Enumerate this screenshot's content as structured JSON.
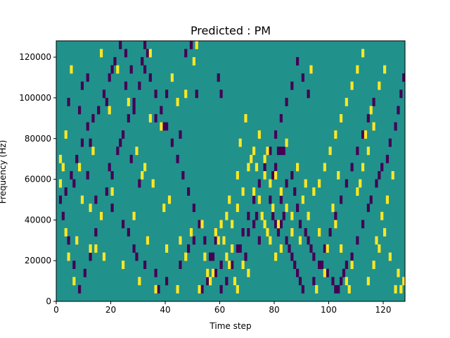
{
  "chart_data": {
    "type": "heatmap",
    "title": "Predicted : PM",
    "xlabel": "Time step",
    "ylabel": "Frequency (Hz)",
    "xlim": [
      0,
      128
    ],
    "ylim": [
      0,
      128000
    ],
    "x_ticks": [
      0,
      20,
      40,
      60,
      80,
      100,
      120
    ],
    "y_ticks": [
      0,
      20000,
      40000,
      60000,
      80000,
      100000,
      120000
    ],
    "grid": false,
    "colormap": {
      "low": "#440154",
      "mid": "#21918c",
      "high": "#fde725"
    },
    "background_value": "mid",
    "cell_height_hz": 4000,
    "high_cells": [
      [
        34,
        120000
      ],
      [
        51,
        124000
      ],
      [
        5,
        112000
      ],
      [
        22,
        112000
      ],
      [
        34,
        88000
      ],
      [
        42,
        108000
      ],
      [
        47,
        100000
      ],
      [
        13,
        72000
      ],
      [
        29,
        72000
      ],
      [
        2,
        64000
      ],
      [
        8,
        64000
      ],
      [
        20,
        52000
      ],
      [
        31,
        60000
      ],
      [
        9,
        48000
      ],
      [
        12,
        44000
      ],
      [
        16,
        40000
      ],
      [
        3,
        32000
      ],
      [
        7,
        28000
      ],
      [
        12,
        24000
      ],
      [
        14,
        24000
      ],
      [
        17,
        20000
      ],
      [
        24,
        16000
      ],
      [
        30,
        8000
      ],
      [
        36,
        4000
      ],
      [
        44,
        4000
      ],
      [
        52,
        4000
      ],
      [
        55,
        12000
      ],
      [
        57,
        12000
      ],
      [
        61,
        28000
      ],
      [
        62,
        20000
      ],
      [
        63,
        16000
      ],
      [
        64,
        24000
      ],
      [
        65,
        8000
      ],
      [
        66,
        4000
      ],
      [
        62,
        40000
      ],
      [
        63,
        48000
      ],
      [
        66,
        60000
      ],
      [
        67,
        76000
      ],
      [
        69,
        88000
      ],
      [
        71,
        68000
      ],
      [
        72,
        52000
      ],
      [
        73,
        64000
      ],
      [
        74,
        48000
      ],
      [
        75,
        40000
      ],
      [
        76,
        36000
      ],
      [
        77,
        32000
      ],
      [
        78,
        28000
      ],
      [
        77,
        72000
      ],
      [
        76,
        60000
      ],
      [
        78,
        56000
      ],
      [
        79,
        44000
      ],
      [
        81,
        36000
      ],
      [
        82,
        24000
      ],
      [
        84,
        76000
      ],
      [
        88,
        64000
      ],
      [
        91,
        56000
      ],
      [
        93,
        112000
      ],
      [
        96,
        32000
      ],
      [
        99,
        24000
      ],
      [
        101,
        44000
      ],
      [
        103,
        60000
      ],
      [
        106,
        8000
      ],
      [
        108,
        16000
      ],
      [
        110,
        52000
      ],
      [
        112,
        64000
      ],
      [
        113,
        80000
      ],
      [
        115,
        92000
      ],
      [
        117,
        28000
      ],
      [
        119,
        40000
      ],
      [
        121,
        48000
      ],
      [
        123,
        60000
      ],
      [
        125,
        12000
      ],
      [
        126,
        4000
      ],
      [
        127,
        8000
      ],
      [
        50,
        116000
      ],
      [
        44,
        96000
      ],
      [
        38,
        84000
      ],
      [
        26,
        96000
      ],
      [
        19,
        92000
      ],
      [
        3,
        80000
      ],
      [
        1,
        56000
      ],
      [
        4,
        20000
      ],
      [
        6,
        8000
      ],
      [
        28,
        40000
      ],
      [
        33,
        28000
      ],
      [
        40,
        24000
      ],
      [
        47,
        20000
      ],
      [
        54,
        20000
      ],
      [
        58,
        32000
      ],
      [
        60,
        36000
      ],
      [
        68,
        16000
      ],
      [
        70,
        12000
      ],
      [
        80,
        20000
      ],
      [
        86,
        32000
      ],
      [
        89,
        28000
      ],
      [
        95,
        4000
      ],
      [
        98,
        12000
      ],
      [
        102,
        36000
      ],
      [
        104,
        24000
      ],
      [
        107,
        4000
      ],
      [
        111,
        56000
      ],
      [
        114,
        72000
      ],
      [
        116,
        84000
      ],
      [
        118,
        104000
      ],
      [
        120,
        112000
      ],
      [
        122,
        20000
      ],
      [
        124,
        4000
      ],
      [
        16,
        120000
      ],
      [
        32,
        64000
      ],
      [
        35,
        56000
      ],
      [
        39,
        44000
      ],
      [
        41,
        48000
      ],
      [
        45,
        28000
      ],
      [
        49,
        32000
      ],
      [
        53,
        36000
      ],
      [
        56,
        8000
      ],
      [
        59,
        28000
      ],
      [
        64,
        36000
      ],
      [
        66,
        44000
      ],
      [
        68,
        52000
      ],
      [
        70,
        64000
      ],
      [
        72,
        72000
      ],
      [
        74,
        80000
      ],
      [
        76,
        68000
      ],
      [
        80,
        60000
      ],
      [
        82,
        52000
      ],
      [
        84,
        44000
      ],
      [
        86,
        40000
      ],
      [
        90,
        48000
      ],
      [
        92,
        40000
      ],
      [
        94,
        52000
      ],
      [
        96,
        56000
      ],
      [
        98,
        64000
      ],
      [
        100,
        72000
      ],
      [
        102,
        80000
      ],
      [
        104,
        88000
      ],
      [
        106,
        96000
      ],
      [
        108,
        104000
      ],
      [
        110,
        112000
      ],
      [
        112,
        120000
      ],
      [
        114,
        8000
      ],
      [
        116,
        16000
      ],
      [
        118,
        24000
      ],
      [
        120,
        32000
      ],
      [
        1,
        68000
      ]
    ],
    "low_cells": [
      [
        32,
        124000
      ],
      [
        33,
        120000
      ],
      [
        31,
        116000
      ],
      [
        47,
        120000
      ],
      [
        49,
        124000
      ],
      [
        20,
        112000
      ],
      [
        11,
        108000
      ],
      [
        9,
        104000
      ],
      [
        25,
        104000
      ],
      [
        40,
        100000
      ],
      [
        51,
        100000
      ],
      [
        59,
        108000
      ],
      [
        60,
        100000
      ],
      [
        4,
        96000
      ],
      [
        8,
        92000
      ],
      [
        18,
        96000
      ],
      [
        28,
        92000
      ],
      [
        36,
        88000
      ],
      [
        39,
        84000
      ],
      [
        45,
        80000
      ],
      [
        12,
        76000
      ],
      [
        23,
        76000
      ],
      [
        27,
        68000
      ],
      [
        19,
        64000
      ],
      [
        30,
        56000
      ],
      [
        11,
        60000
      ],
      [
        6,
        56000
      ],
      [
        14,
        48000
      ],
      [
        20,
        44000
      ],
      [
        24,
        36000
      ],
      [
        26,
        32000
      ],
      [
        28,
        24000
      ],
      [
        29,
        20000
      ],
      [
        32,
        16000
      ],
      [
        36,
        12000
      ],
      [
        37,
        4000
      ],
      [
        40,
        8000
      ],
      [
        45,
        16000
      ],
      [
        48,
        24000
      ],
      [
        50,
        28000
      ],
      [
        53,
        4000
      ],
      [
        55,
        8000
      ],
      [
        57,
        20000
      ],
      [
        58,
        28000
      ],
      [
        60,
        16000
      ],
      [
        67,
        24000
      ],
      [
        69,
        20000
      ],
      [
        70,
        32000
      ],
      [
        72,
        36000
      ],
      [
        73,
        40000
      ],
      [
        74,
        28000
      ],
      [
        79,
        40000
      ],
      [
        80,
        36000
      ],
      [
        81,
        32000
      ],
      [
        82,
        36000
      ],
      [
        83,
        40000
      ],
      [
        84,
        28000
      ],
      [
        85,
        24000
      ],
      [
        86,
        20000
      ],
      [
        87,
        16000
      ],
      [
        88,
        12000
      ],
      [
        89,
        8000
      ],
      [
        90,
        4000
      ],
      [
        81,
        72000
      ],
      [
        82,
        72000
      ],
      [
        83,
        72000
      ],
      [
        80,
        64000
      ],
      [
        79,
        60000
      ],
      [
        78,
        48000
      ],
      [
        82,
        48000
      ],
      [
        84,
        56000
      ],
      [
        86,
        60000
      ],
      [
        87,
        52000
      ],
      [
        88,
        44000
      ],
      [
        89,
        36000
      ],
      [
        91,
        32000
      ],
      [
        92,
        28000
      ],
      [
        93,
        24000
      ],
      [
        94,
        20000
      ],
      [
        97,
        16000
      ],
      [
        99,
        12000
      ],
      [
        101,
        8000
      ],
      [
        102,
        4000
      ],
      [
        103,
        4000
      ],
      [
        104,
        8000
      ],
      [
        105,
        12000
      ],
      [
        106,
        16000
      ],
      [
        108,
        20000
      ],
      [
        110,
        28000
      ],
      [
        112,
        36000
      ],
      [
        114,
        44000
      ],
      [
        115,
        48000
      ],
      [
        117,
        56000
      ],
      [
        118,
        60000
      ],
      [
        119,
        64000
      ],
      [
        121,
        68000
      ],
      [
        122,
        76000
      ],
      [
        124,
        84000
      ],
      [
        125,
        92000
      ],
      [
        126,
        100000
      ],
      [
        127,
        108000
      ],
      [
        116,
        96000
      ],
      [
        114,
        88000
      ],
      [
        112,
        80000
      ],
      [
        110,
        72000
      ],
      [
        108,
        64000
      ],
      [
        106,
        56000
      ],
      [
        104,
        48000
      ],
      [
        102,
        40000
      ],
      [
        100,
        32000
      ],
      [
        98,
        24000
      ],
      [
        96,
        16000
      ],
      [
        94,
        8000
      ],
      [
        92,
        100000
      ],
      [
        90,
        108000
      ],
      [
        88,
        116000
      ],
      [
        86,
        104000
      ],
      [
        84,
        96000
      ],
      [
        82,
        88000
      ],
      [
        80,
        80000
      ],
      [
        78,
        72000
      ],
      [
        76,
        64000
      ],
      [
        74,
        56000
      ],
      [
        72,
        48000
      ],
      [
        70,
        40000
      ],
      [
        68,
        32000
      ],
      [
        66,
        24000
      ],
      [
        64,
        16000
      ],
      [
        62,
        8000
      ],
      [
        60,
        4000
      ],
      [
        58,
        12000
      ],
      [
        56,
        20000
      ],
      [
        54,
        28000
      ],
      [
        52,
        36000
      ],
      [
        50,
        44000
      ],
      [
        48,
        52000
      ],
      [
        46,
        60000
      ],
      [
        44,
        68000
      ],
      [
        42,
        76000
      ],
      [
        40,
        84000
      ],
      [
        38,
        92000
      ],
      [
        36,
        100000
      ],
      [
        34,
        108000
      ],
      [
        32,
        112000
      ],
      [
        30,
        104000
      ],
      [
        28,
        96000
      ],
      [
        26,
        88000
      ],
      [
        24,
        80000
      ],
      [
        22,
        72000
      ],
      [
        20,
        60000
      ],
      [
        18,
        52000
      ],
      [
        16,
        40000
      ],
      [
        14,
        32000
      ],
      [
        12,
        20000
      ],
      [
        10,
        12000
      ],
      [
        8,
        4000
      ],
      [
        6,
        16000
      ],
      [
        4,
        28000
      ],
      [
        2,
        40000
      ],
      [
        1,
        48000
      ],
      [
        3,
        52000
      ],
      [
        5,
        60000
      ],
      [
        7,
        68000
      ],
      [
        9,
        76000
      ],
      [
        11,
        84000
      ],
      [
        13,
        88000
      ],
      [
        15,
        92000
      ],
      [
        17,
        100000
      ],
      [
        19,
        108000
      ],
      [
        21,
        116000
      ],
      [
        23,
        124000
      ],
      [
        25,
        120000
      ],
      [
        27,
        112000
      ]
    ]
  }
}
